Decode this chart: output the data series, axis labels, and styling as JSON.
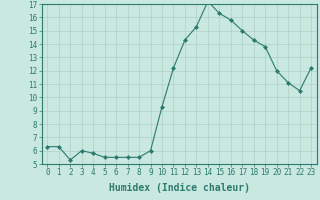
{
  "x": [
    0,
    1,
    2,
    3,
    4,
    5,
    6,
    7,
    8,
    9,
    10,
    11,
    12,
    13,
    14,
    15,
    16,
    17,
    18,
    19,
    20,
    21,
    22,
    23
  ],
  "y": [
    6.3,
    6.3,
    5.3,
    6.0,
    5.8,
    5.5,
    5.5,
    5.5,
    5.5,
    6.0,
    9.3,
    12.2,
    14.3,
    15.3,
    17.2,
    16.3,
    15.8,
    15.0,
    14.3,
    13.8,
    12.0,
    11.1,
    10.5,
    12.2
  ],
  "line_color": "#2d7a6e",
  "marker": "D",
  "marker_size": 2,
  "bg_color": "#c8e8e0",
  "grid_color": "#b0cfc8",
  "xlabel": "Humidex (Indice chaleur)",
  "ylim": [
    5,
    17
  ],
  "xlim_min": -0.5,
  "xlim_max": 23.5,
  "yticks": [
    5,
    6,
    7,
    8,
    9,
    10,
    11,
    12,
    13,
    14,
    15,
    16,
    17
  ],
  "xticks": [
    0,
    1,
    2,
    3,
    4,
    5,
    6,
    7,
    8,
    9,
    10,
    11,
    12,
    13,
    14,
    15,
    16,
    17,
    18,
    19,
    20,
    21,
    22,
    23
  ],
  "tick_color": "#2d7a6e",
  "label_color": "#2d7a6e",
  "spine_color": "#2d7a6e",
  "font_size": 5.5,
  "xlabel_fontsize": 7
}
